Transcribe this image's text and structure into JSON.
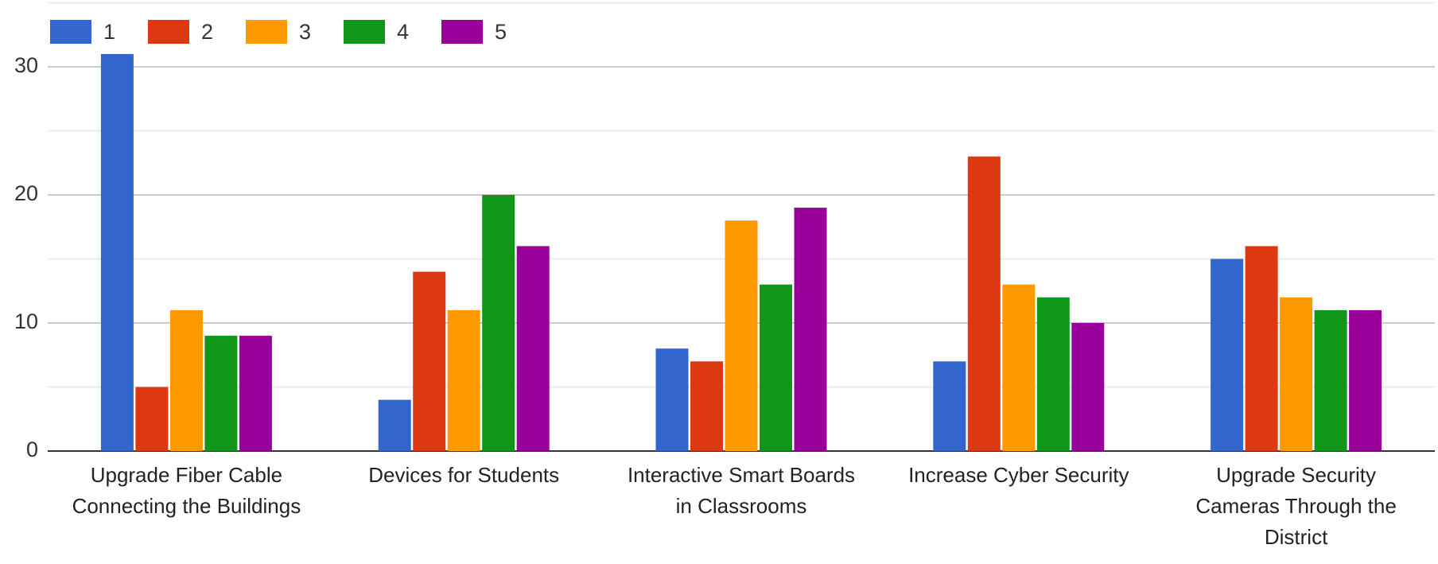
{
  "chart_data": {
    "type": "bar",
    "categories": [
      "Upgrade Fiber Cable Connecting the Buildings",
      "Devices for Students",
      "Interactive Smart Boards in Classrooms",
      "Increase Cyber Security",
      "Upgrade Security Cameras Through the District"
    ],
    "series": [
      {
        "name": "1",
        "color": "#3366cc",
        "values": [
          31,
          4,
          8,
          7,
          15
        ]
      },
      {
        "name": "2",
        "color": "#dc3912",
        "values": [
          5,
          14,
          7,
          23,
          16
        ]
      },
      {
        "name": "3",
        "color": "#ff9900",
        "values": [
          11,
          11,
          18,
          13,
          12
        ]
      },
      {
        "name": "4",
        "color": "#109618",
        "values": [
          9,
          20,
          13,
          12,
          11
        ]
      },
      {
        "name": "5",
        "color": "#990099",
        "values": [
          9,
          16,
          19,
          10,
          11
        ]
      }
    ],
    "ylim": [
      0,
      35
    ],
    "yticks": [
      0,
      10,
      20,
      30
    ],
    "minor_yticks": [
      5,
      15,
      25,
      35
    ],
    "grid": true,
    "legend": "top-left"
  }
}
